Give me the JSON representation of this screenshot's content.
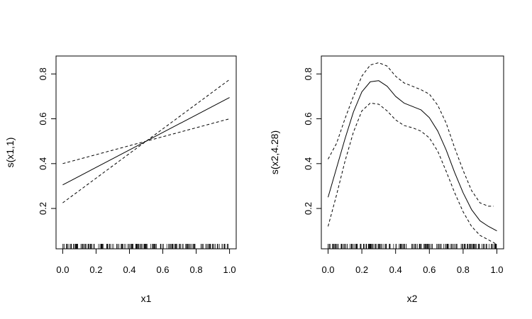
{
  "chart_data": [
    {
      "type": "line",
      "xlabel": "x1",
      "ylabel": "s(x1,1)",
      "xlim": [
        -0.04,
        1.04
      ],
      "ylim": [
        0.02,
        0.88
      ],
      "xticks": [
        "0.0",
        "0.2",
        "0.4",
        "0.6",
        "0.8",
        "1.0"
      ],
      "yticks": [
        "0.2",
        "0.4",
        "0.6",
        "0.8"
      ],
      "grid": false,
      "rug": true,
      "series": [
        {
          "style": "solid",
          "x": [
            0.0,
            0.5,
            1.0
          ],
          "y": [
            0.305,
            0.5,
            0.695
          ]
        },
        {
          "style": "dashed",
          "x": [
            0.0,
            0.5,
            1.0
          ],
          "y": [
            0.225,
            0.5,
            0.775
          ]
        },
        {
          "style": "dashed",
          "x": [
            0.0,
            0.5,
            1.0
          ],
          "y": [
            0.4,
            0.5,
            0.6
          ]
        }
      ]
    },
    {
      "type": "line",
      "xlabel": "x2",
      "ylabel": "s(x2,4.28)",
      "xlim": [
        -0.04,
        1.04
      ],
      "ylim": [
        0.02,
        0.88
      ],
      "xticks": [
        "0.0",
        "0.2",
        "0.4",
        "0.6",
        "0.8",
        "1.0"
      ],
      "yticks": [
        "0.2",
        "0.4",
        "0.6",
        "0.8"
      ],
      "grid": false,
      "rug": true,
      "series": [
        {
          "style": "solid",
          "x": [
            0.0,
            0.05,
            0.1,
            0.15,
            0.2,
            0.25,
            0.3,
            0.35,
            0.4,
            0.45,
            0.5,
            0.55,
            0.6,
            0.65,
            0.7,
            0.75,
            0.8,
            0.85,
            0.9,
            0.95,
            1.0
          ],
          "y": [
            0.25,
            0.38,
            0.51,
            0.63,
            0.72,
            0.765,
            0.77,
            0.745,
            0.7,
            0.67,
            0.655,
            0.64,
            0.605,
            0.545,
            0.46,
            0.36,
            0.27,
            0.195,
            0.145,
            0.12,
            0.1
          ]
        },
        {
          "style": "dashed",
          "x": [
            0.0,
            0.05,
            0.1,
            0.15,
            0.2,
            0.25,
            0.3,
            0.35,
            0.4,
            0.45,
            0.5,
            0.55,
            0.6,
            0.65,
            0.7,
            0.75,
            0.8,
            0.85,
            0.9,
            0.95,
            0.98
          ],
          "y": [
            0.42,
            0.49,
            0.6,
            0.7,
            0.79,
            0.84,
            0.85,
            0.835,
            0.79,
            0.76,
            0.745,
            0.73,
            0.71,
            0.66,
            0.58,
            0.47,
            0.37,
            0.28,
            0.225,
            0.21,
            0.21
          ]
        },
        {
          "style": "dashed",
          "x": [
            0.0,
            0.05,
            0.1,
            0.15,
            0.2,
            0.25,
            0.3,
            0.35,
            0.4,
            0.45,
            0.5,
            0.55,
            0.6,
            0.65,
            0.7,
            0.75,
            0.8,
            0.85,
            0.9,
            0.95,
            1.0
          ],
          "y": [
            0.12,
            0.26,
            0.41,
            0.54,
            0.635,
            0.67,
            0.665,
            0.635,
            0.595,
            0.57,
            0.56,
            0.545,
            0.515,
            0.455,
            0.365,
            0.27,
            0.185,
            0.12,
            0.08,
            0.06,
            0.04
          ]
        }
      ]
    }
  ]
}
